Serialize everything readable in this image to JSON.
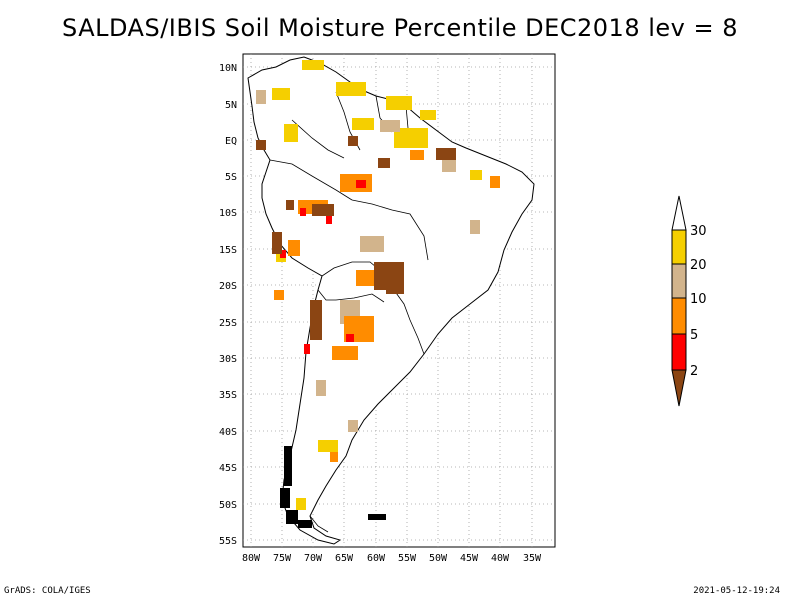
{
  "title": "SALDAS/IBIS Soil Moisture Percentile DEC2018 lev = 8",
  "footer_left": "GrADS: COLA/IGES",
  "footer_right": "2021-05-12-19:24",
  "lat_labels": [
    "10N",
    "5N",
    "EQ",
    "5S",
    "10S",
    "15S",
    "20S",
    "25S",
    "30S",
    "35S",
    "40S",
    "45S",
    "50S",
    "55S"
  ],
  "lon_labels": [
    "80W",
    "75W",
    "70W",
    "65W",
    "60W",
    "55W",
    "50W",
    "45W",
    "40W",
    "35W"
  ],
  "legend": {
    "labels": [
      "30",
      "20",
      "10",
      "5",
      "2"
    ],
    "colors": {
      "above_30": "#ffffff",
      "p20_30": "#f5cf00",
      "p10_20": "#d2b48c",
      "p5_10": "#ff8c00",
      "p2_5": "#ff0000",
      "below_2": "#8b4513"
    }
  },
  "colors": {
    "yellow": "#f5cf00",
    "tan": "#d2b48c",
    "orange": "#ff8c00",
    "red": "#ff0000",
    "brown": "#8b4513",
    "coast": "#000000",
    "grid": "#a0a0a0"
  }
}
